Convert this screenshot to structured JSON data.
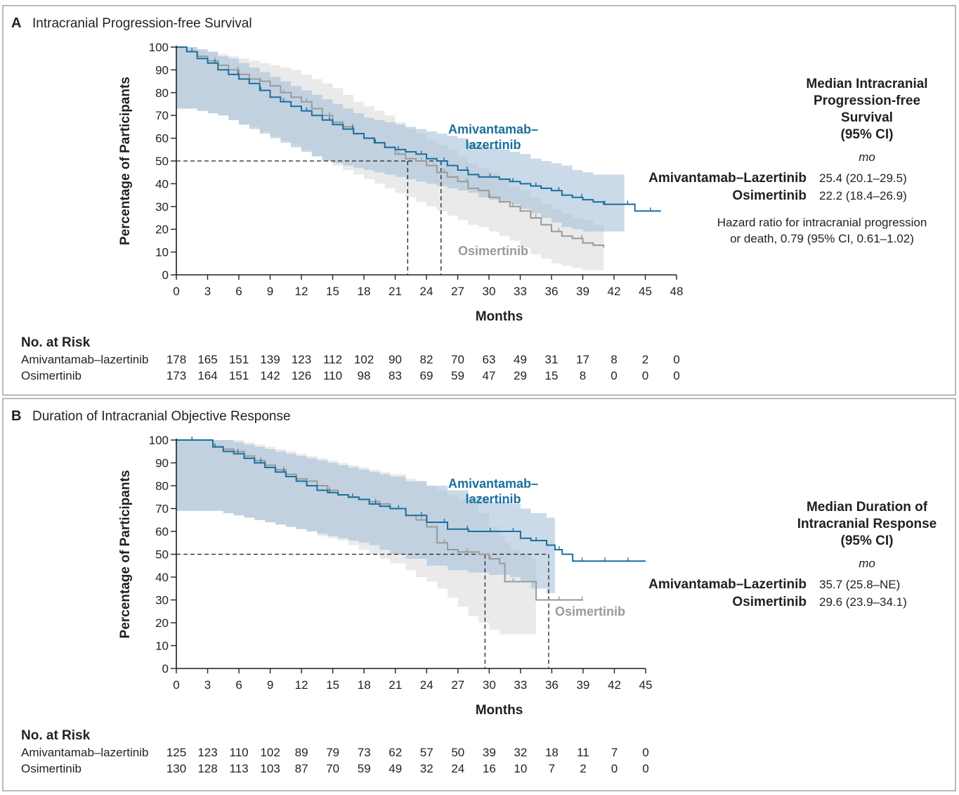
{
  "colors": {
    "amiv": "#1a6f9e",
    "amiv_ci": "#9fbcd6",
    "osim": "#9a9a9a",
    "osim_ci": "#d9d9d9",
    "text": "#231f20"
  },
  "chart_data": [
    {
      "type": "line",
      "panel_letter": "A",
      "title": "Intracranial Progression-free Survival",
      "xlabel": "Months",
      "ylabel": "Percentage of Participants",
      "xlim": [
        0,
        48
      ],
      "ylim": [
        0,
        100
      ],
      "xticks": [
        0,
        3,
        6,
        9,
        12,
        15,
        18,
        21,
        24,
        27,
        30,
        33,
        36,
        39,
        42,
        45,
        48
      ],
      "yticks": [
        0,
        10,
        20,
        30,
        40,
        50,
        60,
        70,
        80,
        90,
        100
      ],
      "grid": false,
      "series": [
        {
          "name": "Amivantamab–lazertinib",
          "label_lines": [
            "Amivantamab–",
            "lazertinib"
          ],
          "x": [
            0,
            1.0,
            2.0,
            3.0,
            4.0,
            5.0,
            6.0,
            7.0,
            8.0,
            9.0,
            10.0,
            11.0,
            12.0,
            13.0,
            14.0,
            15.0,
            16.0,
            17.0,
            18.0,
            19.0,
            20.0,
            21.0,
            22.0,
            23.0,
            24.0,
            25.0,
            26.0,
            27.0,
            28.0,
            29.0,
            30.0,
            31.0,
            32.0,
            33.0,
            34.0,
            35.0,
            36.0,
            37.0,
            38.0,
            39.0,
            40.0,
            41.0,
            42.0,
            43.0,
            44.0,
            45.0,
            46.5
          ],
          "y": [
            100,
            98,
            95,
            93,
            90,
            88,
            86,
            84,
            81,
            78,
            76,
            74,
            72,
            70,
            68,
            66,
            64,
            62,
            60,
            58,
            56,
            55,
            54,
            53,
            51,
            50,
            48,
            46,
            44,
            43,
            43,
            42,
            41,
            40,
            39,
            38,
            37,
            35,
            34,
            33,
            32,
            31,
            31,
            31,
            28,
            28,
            28
          ],
          "ci_lower": [
            73,
            73,
            72,
            71,
            70,
            68,
            66,
            64,
            62,
            60,
            58,
            56,
            54,
            52,
            50,
            49,
            48,
            47,
            46,
            45,
            44,
            43,
            42,
            41,
            40,
            39,
            38,
            37,
            36,
            34,
            33,
            32,
            31,
            29,
            27,
            25,
            23,
            21,
            20,
            19,
            19,
            19,
            19,
            19
          ],
          "ci_upper": [
            100,
            100,
            99,
            98,
            96,
            95,
            93,
            91,
            89,
            87,
            85,
            83,
            81,
            79,
            77,
            75,
            73,
            71,
            69,
            68,
            67,
            66,
            65,
            64,
            63,
            62,
            61,
            60,
            58,
            57,
            56,
            55,
            54,
            53,
            51,
            50,
            49,
            48,
            46,
            45,
            44,
            44,
            44,
            44
          ]
        },
        {
          "name": "Osimertinib",
          "label_lines": [
            "Osimertinib"
          ],
          "x": [
            0,
            1.0,
            2.0,
            3.0,
            4.0,
            5.0,
            6.0,
            7.0,
            8.0,
            9.0,
            10.0,
            11.0,
            12.0,
            13.0,
            14.0,
            15.0,
            16.0,
            17.0,
            18.0,
            19.0,
            20.0,
            21.0,
            22.0,
            23.0,
            24.0,
            25.0,
            26.0,
            27.0,
            28.0,
            29.0,
            30.0,
            31.0,
            32.0,
            33.0,
            34.0,
            35.0,
            36.0,
            37.0,
            38.0,
            39.0,
            40.0,
            41.0
          ],
          "y": [
            100,
            98,
            96,
            94,
            92,
            90,
            88,
            86,
            85,
            83,
            80,
            78,
            76,
            73,
            70,
            67,
            65,
            62,
            60,
            58,
            56,
            53,
            51,
            50,
            48,
            45,
            43,
            41,
            38,
            37,
            34,
            32,
            30,
            28,
            25,
            22,
            19,
            17,
            16,
            14,
            13,
            12
          ],
          "ci_lower": [
            73,
            73,
            72,
            71,
            70,
            68,
            66,
            65,
            63,
            61,
            59,
            57,
            55,
            52,
            50,
            48,
            46,
            44,
            42,
            40,
            38,
            36,
            34,
            32,
            30,
            28,
            26,
            24,
            22,
            21,
            19,
            17,
            15,
            12,
            9,
            7,
            5,
            4,
            3,
            2,
            2,
            2
          ],
          "ci_upper": [
            100,
            100,
            99,
            98,
            97,
            96,
            95,
            94,
            93,
            92,
            91,
            90,
            88,
            86,
            84,
            82,
            79,
            76,
            74,
            72,
            70,
            67,
            64,
            62,
            59,
            57,
            55,
            52,
            49,
            47,
            45,
            42,
            39,
            37,
            34,
            31,
            29,
            27,
            25,
            24,
            22,
            22
          ]
        }
      ],
      "medians": [
        22.2,
        25.4
      ],
      "risk": {
        "title": "No. at Risk",
        "times": [
          0,
          3,
          6,
          9,
          12,
          15,
          18,
          21,
          24,
          27,
          30,
          33,
          36,
          39,
          42,
          45,
          48
        ],
        "rows": [
          {
            "name": "Amivantamab–lazertinib",
            "values": [
              "178",
              "165",
              "151",
              "139",
              "123",
              "112",
              "102",
              "90",
              "82",
              "70",
              "63",
              "49",
              "31",
              "17",
              "8",
              "2",
              "0"
            ]
          },
          {
            "name": "Osimertinib",
            "values": [
              "173",
              "164",
              "151",
              "142",
              "126",
              "110",
              "98",
              "83",
              "69",
              "59",
              "47",
              "29",
              "15",
              "8",
              "0",
              "0",
              "0"
            ]
          }
        ]
      },
      "summary": {
        "heading_lines": [
          "Median Intracranial",
          "Progression-free",
          "Survival",
          "(95% CI)"
        ],
        "unit": "mo",
        "rows": [
          {
            "name": "Amivantamab–Lazertinib",
            "value": "25.4 (20.1–29.5)"
          },
          {
            "name": "Osimertinib",
            "value": "22.2 (18.4–26.9)"
          }
        ],
        "note_lines": [
          "Hazard ratio for intracranial progression",
          "or death, 0.79 (95% CI, 0.61–1.02)"
        ]
      }
    },
    {
      "type": "line",
      "panel_letter": "B",
      "title": "Duration of Intracranial Objective Response",
      "xlabel": "Months",
      "ylabel": "Percentage of Participants",
      "xlim": [
        0,
        45
      ],
      "ylim": [
        0,
        100
      ],
      "xticks": [
        0,
        3,
        6,
        9,
        12,
        15,
        18,
        21,
        24,
        27,
        30,
        33,
        36,
        39,
        42,
        45
      ],
      "yticks": [
        0,
        10,
        20,
        30,
        40,
        50,
        60,
        70,
        80,
        90,
        100
      ],
      "grid": false,
      "series": [
        {
          "name": "Amivantamab–lazertinib",
          "label_lines": [
            "Amivantamab–",
            "lazertinib"
          ],
          "x": [
            0,
            3.5,
            4.5,
            5.5,
            6.5,
            7.5,
            8.5,
            9.5,
            10.5,
            11.5,
            12.5,
            13.5,
            14.5,
            15.5,
            16.5,
            17.5,
            18.5,
            19.5,
            20.5,
            22,
            24,
            26,
            28,
            30,
            32,
            33,
            34,
            35.5,
            36.3,
            37,
            38,
            40,
            42,
            45
          ],
          "y": [
            100,
            97,
            95,
            94,
            92,
            90,
            88,
            86,
            84,
            82,
            80,
            78,
            77,
            76,
            75,
            74,
            72,
            71,
            70,
            67,
            64,
            61,
            60,
            60,
            60,
            57,
            56,
            54,
            52,
            50,
            47,
            47,
            47,
            47
          ],
          "ci_lower": [
            69,
            69,
            68,
            67,
            66,
            65,
            64,
            63,
            62,
            61,
            60,
            59,
            58,
            57,
            56,
            55,
            54,
            52,
            50,
            48,
            45,
            43,
            42,
            41,
            40,
            38,
            35,
            33,
            33
          ],
          "ci_upper": [
            100,
            100,
            100,
            99,
            98,
            97,
            96,
            95,
            94,
            93,
            92,
            91,
            90,
            89,
            88,
            87,
            86,
            85,
            84,
            82,
            80,
            78,
            75,
            73,
            72,
            70,
            68,
            66,
            66
          ]
        },
        {
          "name": "Osimertinib",
          "label_lines": [
            "Osimertinib"
          ],
          "x": [
            0,
            3.5,
            4.5,
            5.5,
            6.5,
            7.5,
            8.5,
            9.5,
            10.5,
            11.5,
            12.5,
            13.5,
            14.5,
            15.5,
            16.5,
            17.5,
            18.5,
            19.5,
            20.5,
            22,
            23,
            24,
            25,
            26,
            27,
            28,
            29,
            30,
            31,
            31.5,
            32,
            33,
            34,
            34.5,
            35,
            36,
            37,
            39
          ],
          "y": [
            100,
            97,
            96,
            95,
            93,
            91,
            89,
            87,
            85,
            83,
            82,
            80,
            78,
            76,
            75,
            74,
            73,
            72,
            70,
            67,
            65,
            62,
            55,
            52,
            51,
            51,
            50,
            48,
            46,
            38,
            38,
            38,
            38,
            30,
            30,
            30,
            30,
            30
          ],
          "ci_lower": [
            69,
            69,
            68,
            67,
            66,
            65,
            64,
            63,
            62,
            61,
            60,
            58,
            57,
            56,
            54,
            52,
            50,
            48,
            46,
            43,
            40,
            38,
            35,
            31,
            27,
            23,
            20,
            17,
            15,
            15,
            15,
            15,
            15,
            9
          ],
          "ci_upper": [
            100,
            100,
            100,
            100,
            99,
            98,
            97,
            96,
            95,
            94,
            93,
            92,
            91,
            90,
            89,
            88,
            87,
            86,
            85,
            83,
            82,
            80,
            78,
            76,
            74,
            72,
            68,
            62,
            58,
            55,
            52,
            50,
            48,
            48
          ]
        }
      ],
      "medians": [
        29.6,
        35.7
      ],
      "risk": {
        "title": "No. at Risk",
        "times": [
          0,
          3,
          6,
          9,
          12,
          15,
          18,
          21,
          24,
          27,
          30,
          33,
          36,
          39,
          42,
          45
        ],
        "rows": [
          {
            "name": "Amivantamab–lazertinib",
            "values": [
              "125",
              "123",
              "110",
              "102",
              "89",
              "79",
              "73",
              "62",
              "57",
              "50",
              "39",
              "32",
              "18",
              "11",
              "7",
              "0"
            ]
          },
          {
            "name": "Osimertinib",
            "values": [
              "130",
              "128",
              "113",
              "103",
              "87",
              "70",
              "59",
              "49",
              "32",
              "24",
              "16",
              "10",
              "7",
              "2",
              "0",
              "0"
            ]
          }
        ]
      },
      "summary": {
        "heading_lines": [
          "Median Duration of",
          "Intracranial Response",
          "(95% CI)"
        ],
        "unit": "mo",
        "rows": [
          {
            "name": "Amivantamab–Lazertinib",
            "value": "35.7 (25.8–NE)"
          },
          {
            "name": "Osimertinib",
            "value": "29.6 (23.9–34.1)"
          }
        ],
        "note_lines": []
      }
    }
  ]
}
